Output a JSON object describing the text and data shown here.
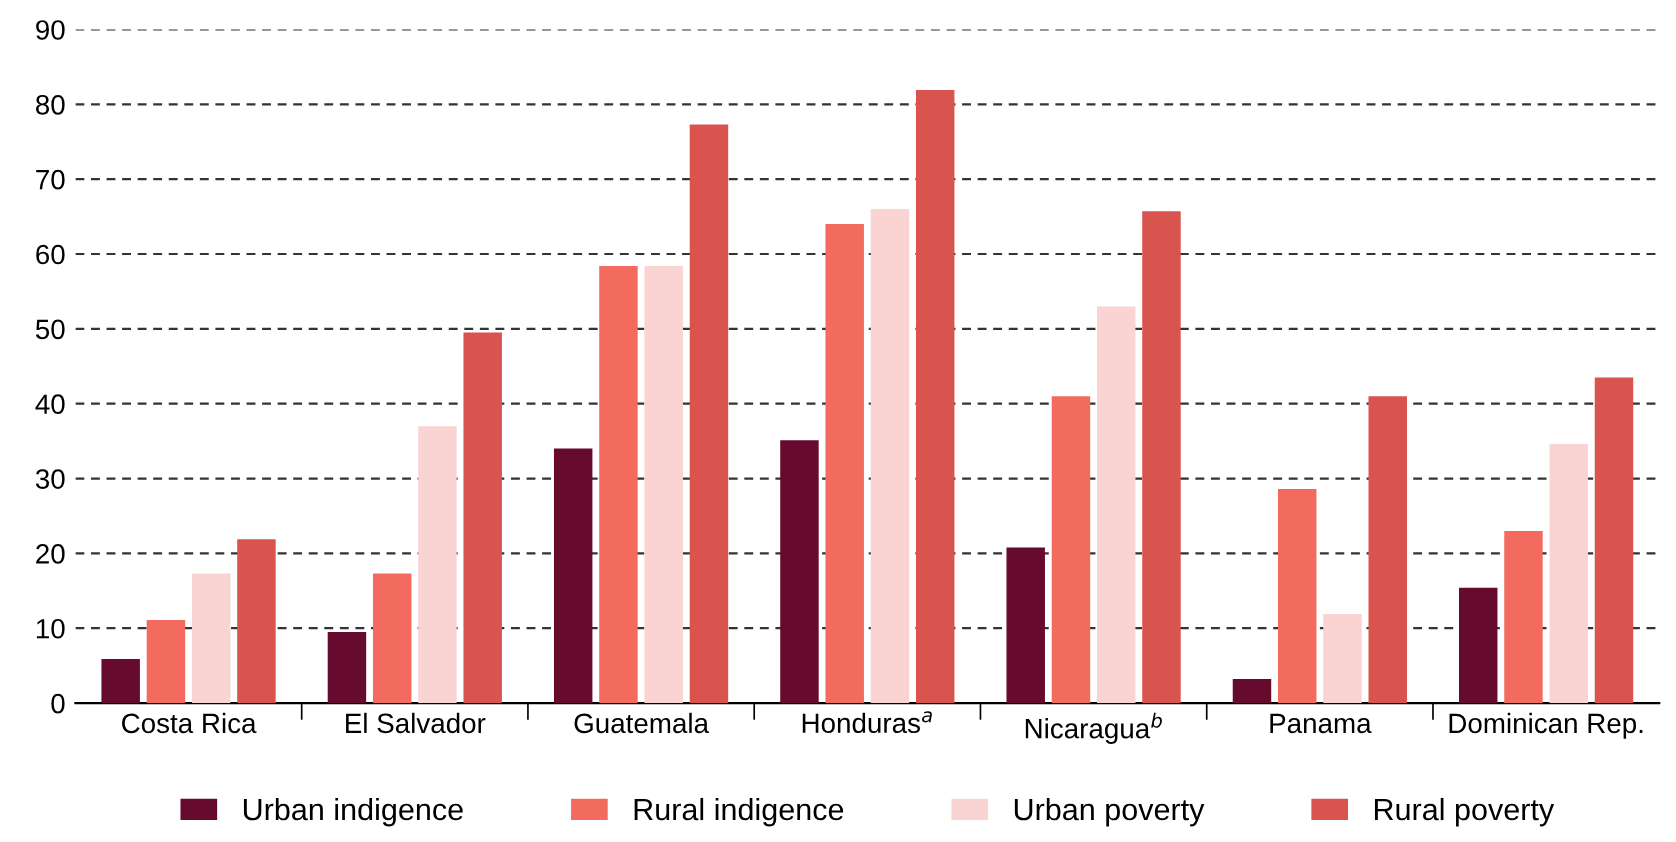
{
  "chart_data": {
    "type": "bar",
    "categories": [
      "Costa Rica",
      "El Salvador",
      "Guatemala",
      "Honduras$^{a}$",
      "Nicaragua$^{b}$",
      "Panama",
      "Dominican Rep."
    ],
    "series": [
      {
        "name": "Urban indigence",
        "color": "#660a2e",
        "values": [
          5.9,
          9.5,
          34,
          35.1,
          20.8,
          3.2,
          15.4
        ]
      },
      {
        "name": "Rural indigence",
        "color": "#f26b5e",
        "values": [
          11.1,
          17.3,
          58.4,
          64,
          41,
          28.6,
          23
        ]
      },
      {
        "name": "Urban poverty",
        "color": "#fad3d3",
        "values": [
          17.3,
          37,
          58.4,
          66,
          53,
          11.9,
          34.6
        ]
      },
      {
        "name": "Rural poverty",
        "color": "#d9534f",
        "values": [
          21.9,
          49.5,
          77.3,
          81.9,
          65.7,
          41,
          43.5
        ]
      }
    ],
    "ylim": [
      0,
      90
    ],
    "yticks": [
      0,
      10,
      20,
      30,
      40,
      50,
      60,
      70,
      80,
      90
    ],
    "grid": "y",
    "legend": "bottom"
  }
}
